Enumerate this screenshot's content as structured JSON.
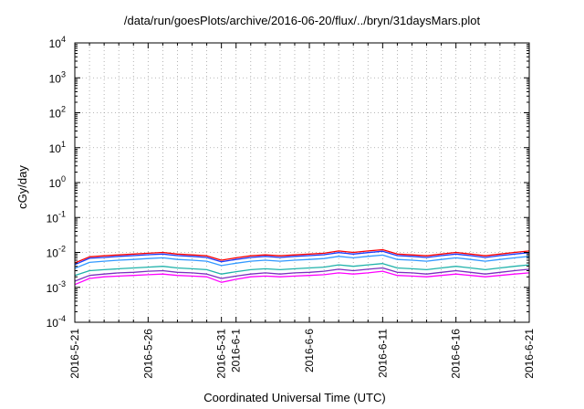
{
  "chart_data": {
    "type": "line",
    "title": "/data/run/goesPlots/archive/2016-06-20/flux/../bryn/31daysMars.plot",
    "xlabel": "Coordinated Universal Time (UTC)",
    "ylabel": "cGy/day",
    "xlim": [
      "2016-05-21",
      "2016-06-21"
    ],
    "ylim": [
      0.0001,
      10000
    ],
    "yscale": "log",
    "grid": true,
    "legend": "none",
    "x_tick_labels": [
      "2016-5-21",
      "2016-5-26",
      "2016-5-31",
      "2016-6-1",
      "2016-6-6",
      "2016-6-11",
      "2016-6-16",
      "2016-6-21"
    ],
    "y_ticks": [
      {
        "base": "10",
        "exp": "-4"
      },
      {
        "base": "10",
        "exp": "-3"
      },
      {
        "base": "10",
        "exp": "-2"
      },
      {
        "base": "10",
        "exp": "-1"
      },
      {
        "base": "10",
        "exp": "0"
      },
      {
        "base": "10",
        "exp": "1"
      },
      {
        "base": "10",
        "exp": "2"
      },
      {
        "base": "10",
        "exp": "3"
      },
      {
        "base": "10",
        "exp": "4"
      }
    ],
    "x": [
      "2016-05-21",
      "2016-05-22",
      "2016-05-23",
      "2016-05-24",
      "2016-05-25",
      "2016-05-26",
      "2016-05-27",
      "2016-05-28",
      "2016-05-29",
      "2016-05-30",
      "2016-05-31",
      "2016-06-01",
      "2016-06-02",
      "2016-06-03",
      "2016-06-04",
      "2016-06-05",
      "2016-06-06",
      "2016-06-07",
      "2016-06-08",
      "2016-06-09",
      "2016-06-10",
      "2016-06-11",
      "2016-06-12",
      "2016-06-13",
      "2016-06-14",
      "2016-06-15",
      "2016-06-16",
      "2016-06-17",
      "2016-06-18",
      "2016-06-19",
      "2016-06-20",
      "2016-06-21"
    ],
    "series": [
      {
        "color": "#ff0000",
        "values": [
          0.005,
          0.0075,
          0.008,
          0.0085,
          0.009,
          0.0095,
          0.01,
          0.009,
          0.0085,
          0.008,
          0.006,
          0.007,
          0.008,
          0.0085,
          0.008,
          0.0085,
          0.009,
          0.0095,
          0.011,
          0.01,
          0.011,
          0.012,
          0.009,
          0.0085,
          0.008,
          0.009,
          0.01,
          0.009,
          0.008,
          0.009,
          0.01,
          0.011
        ]
      },
      {
        "color": "#1a3cff",
        "values": [
          0.0045,
          0.0068,
          0.0072,
          0.0077,
          0.0081,
          0.0086,
          0.009,
          0.0081,
          0.0077,
          0.0072,
          0.0054,
          0.0063,
          0.0072,
          0.0077,
          0.0072,
          0.0077,
          0.0081,
          0.0086,
          0.0099,
          0.009,
          0.0099,
          0.0108,
          0.0081,
          0.0077,
          0.0072,
          0.0081,
          0.009,
          0.0081,
          0.0072,
          0.0081,
          0.009,
          0.0099
        ]
      },
      {
        "color": "#3399ff",
        "values": [
          0.0035,
          0.0052,
          0.0056,
          0.006,
          0.0063,
          0.0067,
          0.007,
          0.0063,
          0.006,
          0.0056,
          0.0042,
          0.0049,
          0.0056,
          0.006,
          0.0056,
          0.006,
          0.0063,
          0.0067,
          0.0077,
          0.007,
          0.0077,
          0.0084,
          0.0063,
          0.006,
          0.0056,
          0.0063,
          0.007,
          0.0063,
          0.0056,
          0.0063,
          0.007,
          0.0077
        ]
      },
      {
        "color": "#20b2aa",
        "values": [
          0.0022,
          0.003,
          0.0032,
          0.0034,
          0.0036,
          0.0038,
          0.004,
          0.0036,
          0.0034,
          0.0032,
          0.0024,
          0.0028,
          0.0032,
          0.0034,
          0.0032,
          0.0034,
          0.0036,
          0.0038,
          0.0044,
          0.004,
          0.0044,
          0.0048,
          0.0036,
          0.0034,
          0.0032,
          0.0036,
          0.004,
          0.0036,
          0.0032,
          0.0036,
          0.004,
          0.0044
        ]
      },
      {
        "color": "#7b2fbf",
        "values": [
          0.0015,
          0.0022,
          0.0024,
          0.0026,
          0.0027,
          0.0029,
          0.003,
          0.0027,
          0.0026,
          0.0024,
          0.0018,
          0.0021,
          0.0024,
          0.0026,
          0.0024,
          0.0026,
          0.0027,
          0.0029,
          0.0033,
          0.003,
          0.0033,
          0.0036,
          0.0027,
          0.0026,
          0.0024,
          0.0027,
          0.003,
          0.0027,
          0.0024,
          0.0027,
          0.003,
          0.0033
        ]
      },
      {
        "color": "#ff00ff",
        "values": [
          0.0012,
          0.0018,
          0.002,
          0.0021,
          0.0022,
          0.0023,
          0.0024,
          0.0022,
          0.0021,
          0.002,
          0.0014,
          0.0017,
          0.002,
          0.0021,
          0.002,
          0.0021,
          0.0022,
          0.0023,
          0.0026,
          0.0024,
          0.0026,
          0.0029,
          0.0022,
          0.0021,
          0.002,
          0.0022,
          0.0024,
          0.0022,
          0.002,
          0.0022,
          0.0024,
          0.0026
        ]
      }
    ]
  }
}
